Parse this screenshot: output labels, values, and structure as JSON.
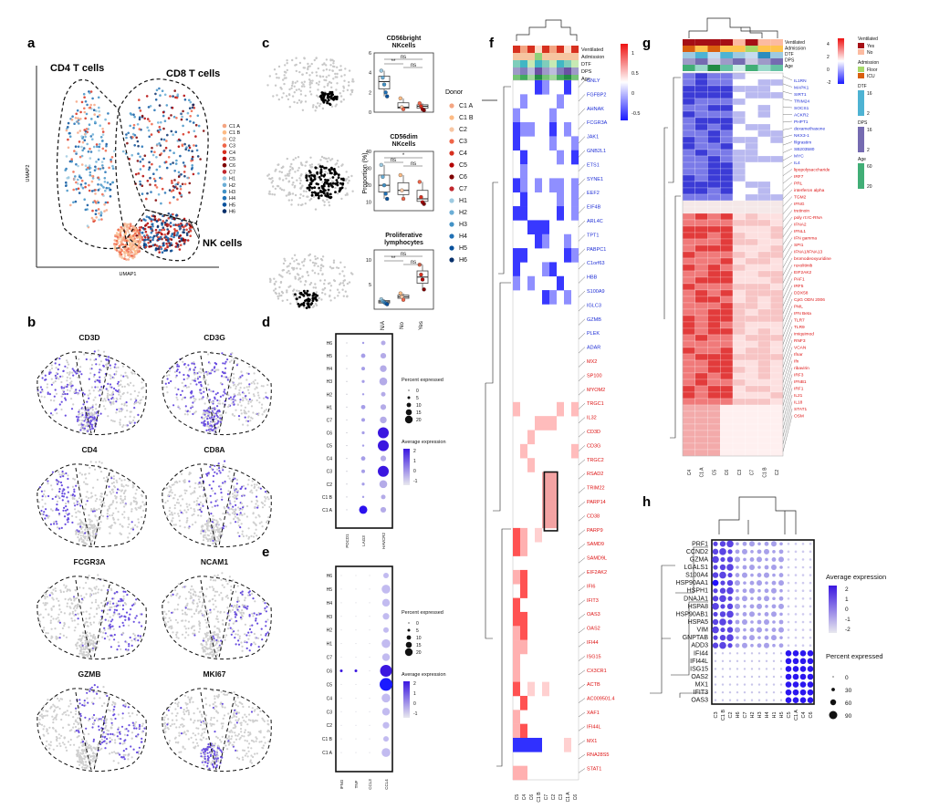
{
  "figure": {
    "panel_labels": [
      "a",
      "b",
      "c",
      "d",
      "e",
      "f",
      "g",
      "h"
    ]
  },
  "panel_a": {
    "cluster_labels": [
      "CD4 T cells",
      "CD8 T cells",
      "NK cells"
    ],
    "xlabel": "UMAP1",
    "ylabel": "UMAP2",
    "legend": [
      "C1 A",
      "C1 B",
      "C2",
      "C3",
      "C4",
      "C5",
      "C6",
      "C7",
      "H1",
      "H2",
      "H3",
      "H4",
      "H5",
      "H6"
    ],
    "legend_colors": [
      "#f4a582",
      "#fdbb84",
      "#f7c6a3",
      "#ef6548",
      "#d7301f",
      "#b30000",
      "#7f0000",
      "#c1272d",
      "#9ecae1",
      "#6baed6",
      "#4292c6",
      "#2171b5",
      "#08519c",
      "#08306b"
    ]
  },
  "panel_b": {
    "genes": [
      "CD3D",
      "CD3G",
      "CD4",
      "CD8A",
      "FCGR3A",
      "NCAM1",
      "GZMB",
      "MKI67"
    ]
  },
  "panel_c": {
    "subplots": [
      {
        "title_1": "CD56bright",
        "title_2": "NKcells",
        "yticks": [
          "0",
          "2",
          "4",
          "6"
        ],
        "sig": [
          "**",
          "ns",
          "ns"
        ]
      },
      {
        "title_1": "CD56dim",
        "title_2": "NKcells",
        "yticks": [
          "10",
          "20",
          "30",
          "40"
        ],
        "sig": [
          "ns",
          "*",
          "ns"
        ]
      },
      {
        "title_1": "Proliferative",
        "title_2": "lymphocytes",
        "yticks": [
          "5",
          "10"
        ],
        "sig": [
          "**",
          "ns",
          "ns"
        ]
      }
    ],
    "ylabel": "Proportion (%)",
    "xticks": [
      "N/A",
      "No",
      "Yes"
    ],
    "legend_title": "Donor",
    "chart_data": {
      "type": "box",
      "groups": [
        "N/A",
        "No",
        "Yes"
      ],
      "series": [
        {
          "name": "CD56bright NKcells",
          "medians": [
            3.1,
            0.5,
            0.6
          ],
          "points": [
            [
              4.2,
              3.5,
              2.8,
              2.0,
              1.6
            ],
            [
              1.4,
              0.5,
              0.3
            ],
            [
              0.9,
              0.6,
              0.3,
              0.2
            ]
          ]
        },
        {
          "name": "CD56dim NKcells",
          "medians": [
            20,
            17,
            12
          ],
          "points": [
            [
              32,
              25,
              20,
              15,
              12
            ],
            [
              26,
              17,
              12
            ],
            [
              22,
              13,
              10,
              9
            ]
          ]
        },
        {
          "name": "Proliferative lymphocytes",
          "medians": [
            1.5,
            2.5,
            6.5
          ],
          "points": [
            [
              2.0,
              1.6,
              1.4,
              1.2,
              1.0
            ],
            [
              3.2,
              2.5,
              1.9
            ],
            [
              9.0,
              7.0,
              6.0,
              4.0
            ]
          ]
        }
      ]
    }
  },
  "panel_d": {
    "rows": [
      "H6",
      "H5",
      "H4",
      "H3",
      "H2",
      "H1",
      "C7",
      "C6",
      "C5",
      "C4",
      "C3",
      "C2",
      "C1 B",
      "C1 A"
    ],
    "cols": [
      "PDCD1",
      "LAG3",
      "HAVCR2"
    ],
    "legend_percent_title": "Percent expressed",
    "legend_percent": [
      "0",
      "5",
      "10",
      "15",
      "20"
    ],
    "legend_avg_title": "Average expression",
    "legend_avg": [
      "2",
      "1",
      "0",
      "-1"
    ]
  },
  "panel_e": {
    "rows": [
      "H6",
      "H5",
      "H4",
      "H3",
      "H2",
      "H1",
      "C7",
      "C6",
      "C5",
      "C4",
      "C3",
      "C2",
      "C1 B",
      "C1 A"
    ],
    "cols": [
      "IFNG",
      "TNF",
      "CCL3",
      "CCL4"
    ],
    "legend_percent_title": "Percent expressed",
    "legend_percent": [
      "0",
      "5",
      "10",
      "15",
      "20"
    ],
    "legend_avg_title": "Average expression",
    "legend_avg": [
      "2",
      "1",
      "0",
      "-1"
    ]
  },
  "panel_f": {
    "annotation_rows": [
      "Ventilated",
      "Admission",
      "DTF",
      "DPS",
      "Age"
    ],
    "columns": [
      "C5",
      "C4",
      "C6",
      "C1 B",
      "C7",
      "C2",
      "C3",
      "C1 A",
      "C6"
    ],
    "genes_blue": [
      "GNLY",
      "FGFBP2",
      "AHNAK",
      "FCGR3A",
      "JAK1",
      "GNB2L1",
      "ETS1",
      "SYNE1",
      "EEF2",
      "EIF4B",
      "ARL4C",
      "TPT1",
      "PABPC1",
      "C1orf63",
      "HBB",
      "S100A9",
      "IGLC3",
      "GZMB",
      "PLEK",
      "ADAR",
      "MX2",
      "SP100",
      "MYOM2",
      "TRGC1",
      "IL32",
      "CD3D",
      "CD3G",
      "TRGC2",
      "RSAD2",
      "TRIM22",
      "PARP14",
      "CD38",
      "PARP9",
      "SAMD9",
      "SAMD9L",
      "EIF2AK2",
      "IFI6",
      "IFIT3",
      "OAS3",
      "OAS2",
      "IFI44",
      "ISG15",
      "CX3CR1",
      "ACTB",
      "AC009501.4",
      "XAF1",
      "IFI44L",
      "MX1",
      "RNA28S5",
      "STAT1"
    ],
    "colorbar": [
      "1",
      "0.5",
      "0",
      "-0.5"
    ]
  },
  "panel_g": {
    "annotation_rows": [
      "Ventilated",
      "Admission",
      "DTF",
      "DPS",
      "Age"
    ],
    "columns": [
      "C4",
      "C1 A",
      "C5",
      "C6",
      "C3",
      "C7",
      "C1 B",
      "C2"
    ],
    "regulators": [
      "IL1RN",
      "MAPK1",
      "SIRT1",
      "TRIM24",
      "SOCS1",
      "ACKR2",
      "PHPT1",
      "dexamethasone",
      "NKX3-1",
      "filgrastim",
      "SB203580",
      "MYC",
      "IL4",
      "lipopolysaccharide",
      "IRF7",
      "PRL",
      "interferon alpha",
      "TGM2",
      "IFNG",
      "tretinoin",
      "poly rI:rC-RNA",
      "IFNA2",
      "IFNL1",
      "IFN gamma",
      "SPI1",
      "IFNA1/IFNA13",
      "bromodeoxyuridine",
      "ruxolitinib",
      "EIF2AK2",
      "PAF1",
      "IRF5",
      "DDX58",
      "CpG ODN 2006",
      "PML",
      "IFN Beta",
      "TLR7",
      "TLR9",
      "imiquimod",
      "RNF3",
      "VCAN",
      "Ifnar",
      "Ifn",
      "ribavirin",
      "IRF3",
      "IFNB1",
      "IRF1",
      "IL21",
      "IL18",
      "STAT1",
      "OSM"
    ],
    "n_blue": 13,
    "legend_ventilated_title": "Ventilated",
    "legend_ventilated": [
      "Yes",
      "No"
    ],
    "legend_admission_title": "Admission",
    "legend_admission": [
      "Floor",
      "ICU"
    ],
    "legend_dtf_title": "DTF",
    "legend_dps_title": "DPS",
    "legend_age_title": "Age",
    "colorbar": [
      "4",
      "2",
      "0",
      "-2"
    ],
    "dtf_ticks": [
      "16",
      "2"
    ],
    "dps_ticks": [
      "16",
      "2"
    ],
    "age_ticks": [
      "60",
      "20"
    ]
  },
  "panel_h": {
    "genes": [
      "PRF1",
      "CCND2",
      "GZMA",
      "LGALS1",
      "S100A4",
      "HSP90AA1",
      "HSPH1",
      "DNAJA1",
      "HSPA8",
      "HSP90AB1",
      "HSPA5",
      "VIM",
      "GNPTAB",
      "ADD3",
      "IFI44",
      "IFI44L",
      "ISG15",
      "OAS2",
      "MX1",
      "IFIT3",
      "OAS3"
    ],
    "cols": [
      "C3",
      "C1 B",
      "C2",
      "H6",
      "C7",
      "H2",
      "H3",
      "H4",
      "H1",
      "H5",
      "C5",
      "C1 A",
      "C4",
      "C6"
    ],
    "legend_avg_title": "Average expression",
    "legend_avg": [
      "2",
      "1",
      "0",
      "-1",
      "-2"
    ],
    "legend_percent_title": "Percent expressed",
    "legend_percent": [
      "0",
      "30",
      "60",
      "90"
    ]
  }
}
